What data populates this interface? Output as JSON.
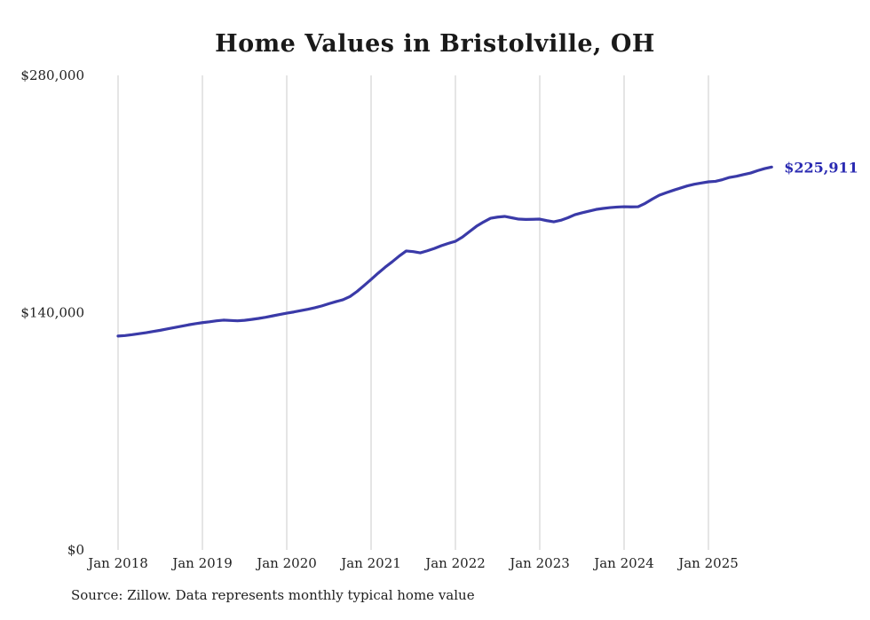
{
  "chart": {
    "title": "Home Values in Bristolville, OH",
    "source": "Source: Zillow. Data represents monthly typical home value",
    "colors": {
      "line": "#3a3aa8",
      "end_label": "#2a2ab2",
      "gridline": "#cbcbcb",
      "tick_text": "#222222",
      "background": "#ffffff"
    }
  },
  "chart_data": {
    "type": "line",
    "title": "Home Values in Bristolville, OH",
    "xlabel": "",
    "ylabel": "",
    "ylim": [
      0,
      280000
    ],
    "grid": "vertical-only",
    "legend_position": "none",
    "y_ticks": [
      {
        "label": "$280,000",
        "value": 280000
      },
      {
        "label": "$140,000",
        "value": 140000
      },
      {
        "label": "$0",
        "value": 0
      }
    ],
    "x_ticks": [
      "Jan 2018",
      "Jan 2019",
      "Jan 2020",
      "Jan 2021",
      "Jan 2022",
      "Jan 2023",
      "Jan 2024",
      "Jan 2025"
    ],
    "end_label": "$225,911",
    "end_value": 225911,
    "series": [
      {
        "name": "Monthly typical home value",
        "start": "2018-01",
        "frequency": "monthly",
        "months": [
          "2018-01",
          "2018-02",
          "2018-03",
          "2018-04",
          "2018-05",
          "2018-06",
          "2018-07",
          "2018-08",
          "2018-09",
          "2018-10",
          "2018-11",
          "2018-12",
          "2019-01",
          "2019-02",
          "2019-03",
          "2019-04",
          "2019-05",
          "2019-06",
          "2019-07",
          "2019-08",
          "2019-09",
          "2019-10",
          "2019-11",
          "2019-12",
          "2020-01",
          "2020-02",
          "2020-03",
          "2020-04",
          "2020-05",
          "2020-06",
          "2020-07",
          "2020-08",
          "2020-09",
          "2020-10",
          "2020-11",
          "2020-12",
          "2021-01",
          "2021-02",
          "2021-03",
          "2021-04",
          "2021-05",
          "2021-06",
          "2021-07",
          "2021-08",
          "2021-09",
          "2021-10",
          "2021-11",
          "2021-12",
          "2022-01",
          "2022-02",
          "2022-03",
          "2022-04",
          "2022-05",
          "2022-06",
          "2022-07",
          "2022-08",
          "2022-09",
          "2022-10",
          "2022-11",
          "2022-12",
          "2023-01",
          "2023-02",
          "2023-03",
          "2023-04",
          "2023-05",
          "2023-06",
          "2023-07",
          "2023-08",
          "2023-09",
          "2023-10",
          "2023-11",
          "2023-12",
          "2024-01",
          "2024-02",
          "2024-03",
          "2024-04",
          "2024-05",
          "2024-06",
          "2024-07",
          "2024-08",
          "2024-09",
          "2024-10",
          "2024-11",
          "2024-12",
          "2025-01",
          "2025-02",
          "2025-03",
          "2025-04",
          "2025-05",
          "2025-06",
          "2025-07",
          "2025-08",
          "2025-09",
          "2025-10"
        ],
        "values": [
          126200,
          126500,
          127000,
          127600,
          128200,
          128900,
          129600,
          130400,
          131200,
          132000,
          132800,
          133500,
          134100,
          134600,
          135200,
          135600,
          135400,
          135200,
          135500,
          136000,
          136600,
          137300,
          138100,
          138900,
          139700,
          140400,
          141200,
          142000,
          142900,
          144000,
          145300,
          146500,
          147600,
          149500,
          152500,
          156000,
          159600,
          163300,
          166800,
          170000,
          173400,
          176400,
          176000,
          175300,
          176500,
          177900,
          179500,
          180900,
          182100,
          184600,
          187800,
          191000,
          193500,
          195700,
          196400,
          196800,
          196000,
          195200,
          195000,
          195100,
          195200,
          194300,
          193600,
          194500,
          196000,
          197800,
          198900,
          199900,
          200900,
          201500,
          202000,
          202300,
          202500,
          202400,
          202500,
          204500,
          207000,
          209300,
          210800,
          212200,
          213500,
          214800,
          215800,
          216500,
          217200,
          217500,
          218500,
          219800,
          220500,
          221500,
          222400,
          223800,
          225000,
          225911
        ]
      }
    ]
  }
}
